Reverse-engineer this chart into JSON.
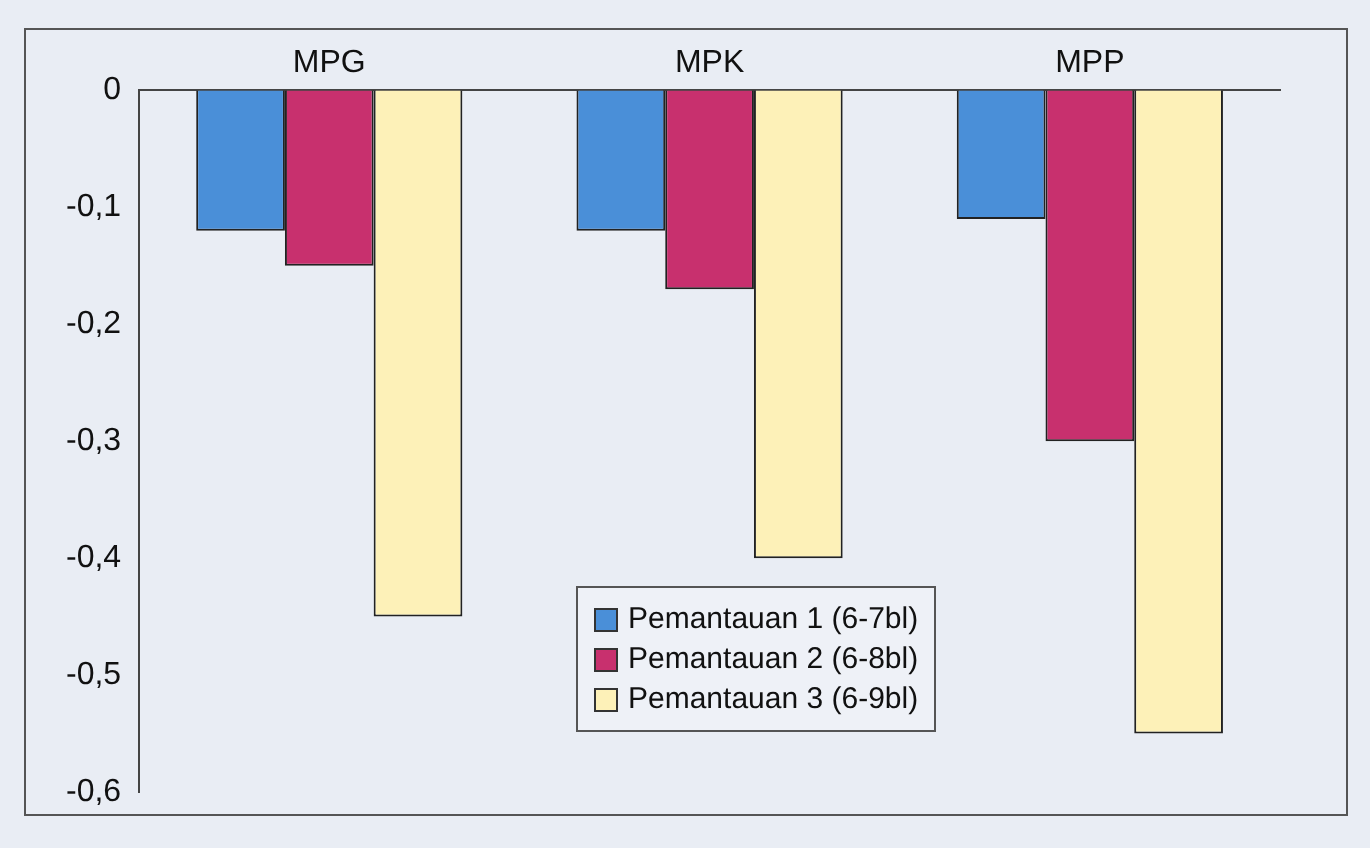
{
  "chart_data": {
    "type": "bar",
    "categories": [
      "MPG",
      "MPK",
      "MPP"
    ],
    "series": [
      {
        "name": "Pemantauan 1 (6-7bl)",
        "color": "#4a8fd8",
        "values": [
          -0.12,
          -0.12,
          -0.11
        ]
      },
      {
        "name": "Pemantauan 2 (6-8bl)",
        "color": "#c8306e",
        "values": [
          -0.15,
          -0.17,
          -0.3
        ]
      },
      {
        "name": "Pemantauan 3 (6-9bl)",
        "color": "#fdf1b8",
        "values": [
          -0.45,
          -0.4,
          -0.55
        ]
      }
    ],
    "ylim": [
      -0.6,
      0
    ],
    "yticks": [
      {
        "value": 0,
        "label": "0"
      },
      {
        "value": -0.1,
        "label": "-0,1"
      },
      {
        "value": -0.2,
        "label": "-0,2"
      },
      {
        "value": -0.3,
        "label": "-0,3"
      },
      {
        "value": -0.4,
        "label": "-0,4"
      },
      {
        "value": -0.5,
        "label": "-0,5"
      },
      {
        "value": -0.6,
        "label": "-0,6"
      }
    ],
    "grid": false,
    "legend": "bottom"
  }
}
